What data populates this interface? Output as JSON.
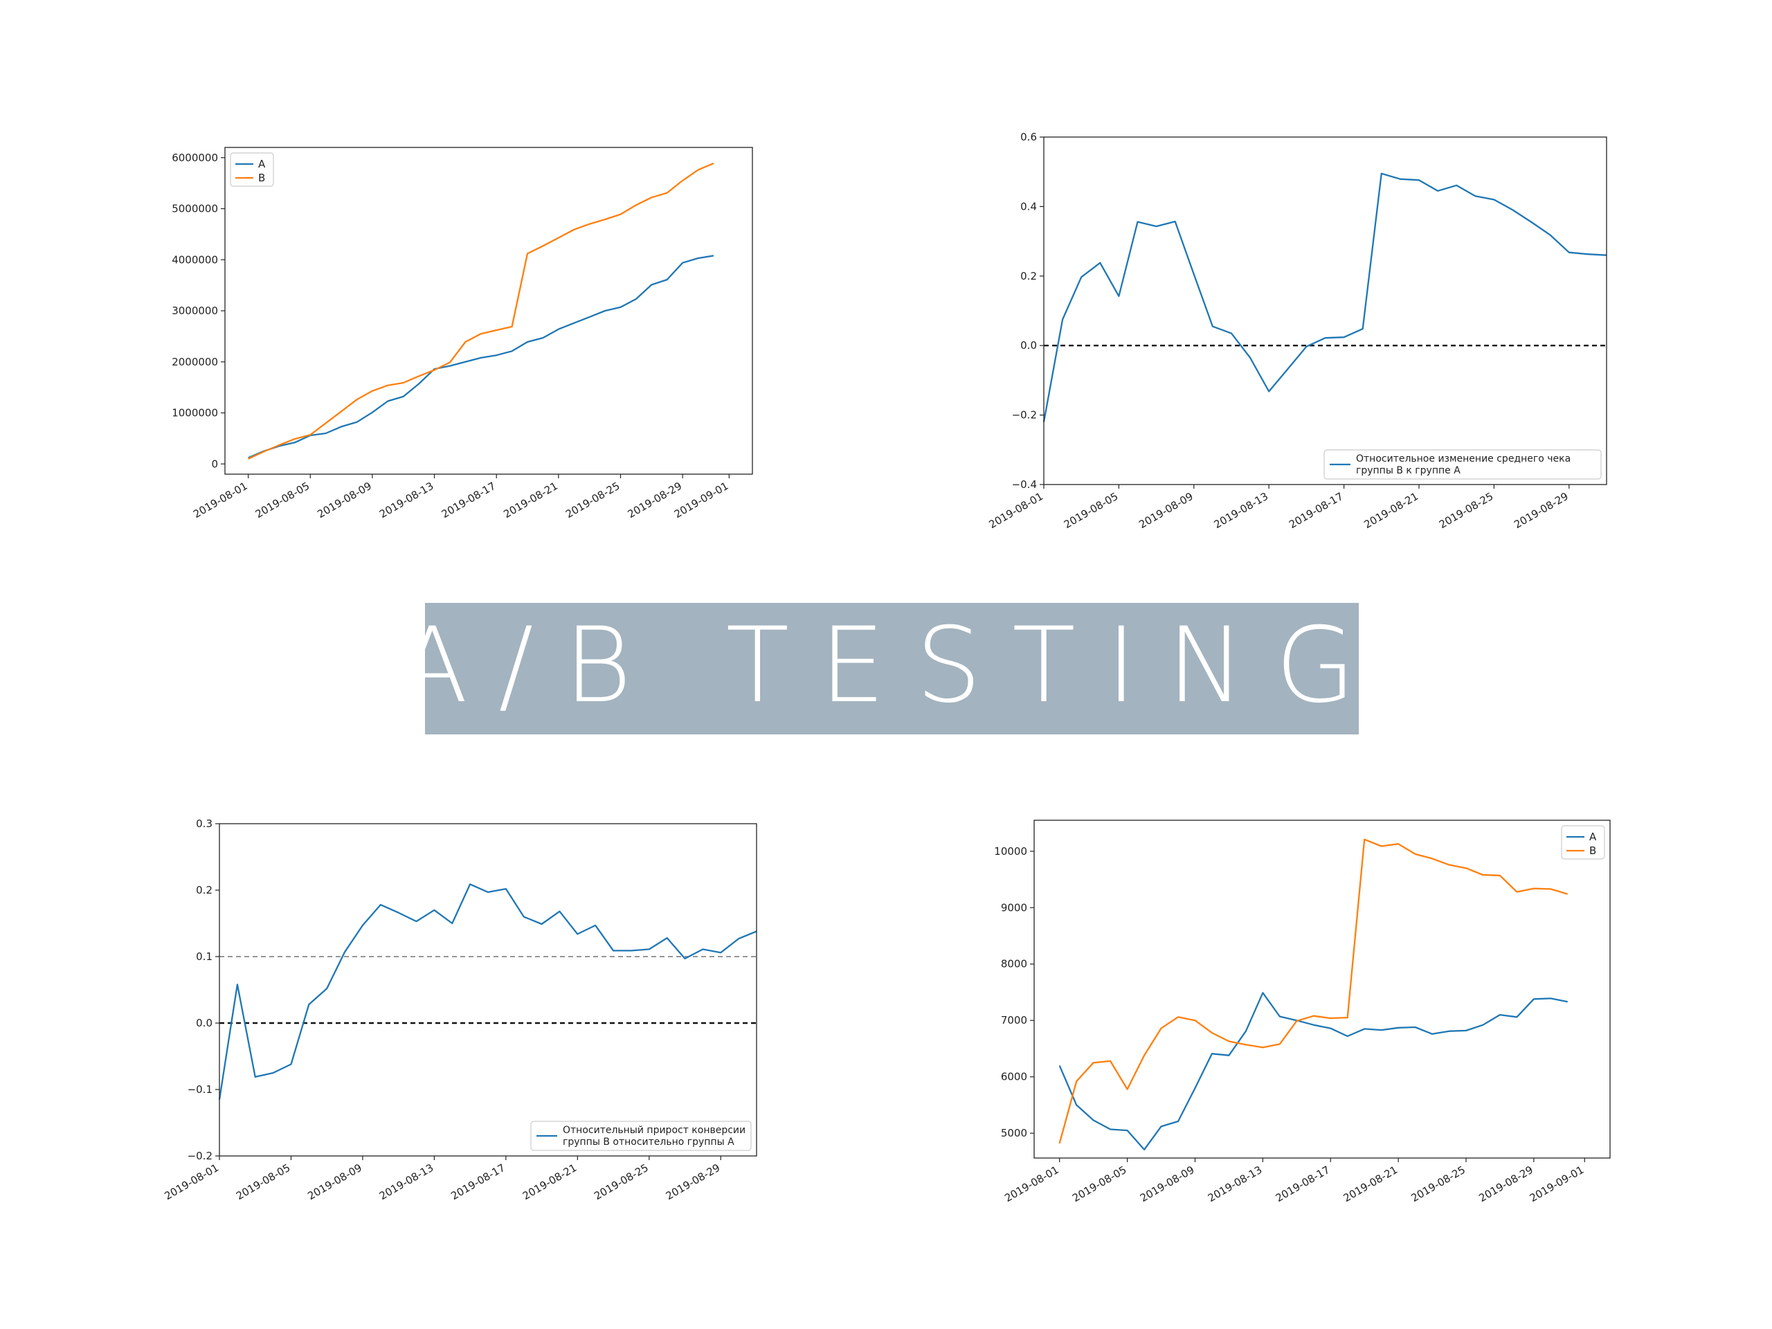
{
  "banner": {
    "title": "A/B TESTING",
    "background": "#a3b3bf",
    "text_color": "#ffffff"
  },
  "colors": {
    "A": "#1f77b4",
    "B": "#ff7f0e"
  },
  "chart_data": [
    {
      "id": "cum-revenue",
      "type": "line",
      "title": "",
      "xlabel": "",
      "ylabel": "",
      "x_ticks": [
        "2019-08-01",
        "2019-08-05",
        "2019-08-09",
        "2019-08-13",
        "2019-08-17",
        "2019-08-21",
        "2019-08-25",
        "2019-08-29",
        "2019-09-01"
      ],
      "y_ticks": [
        "0",
        "1000000",
        "2000000",
        "3000000",
        "4000000",
        "5000000",
        "6000000"
      ],
      "ylim": [
        -200000,
        6200000
      ],
      "legend": "top-left",
      "series": [
        {
          "name": "A",
          "values": [
            120000,
            250000,
            350000,
            420000,
            560000,
            600000,
            730000,
            820000,
            1010000,
            1230000,
            1320000,
            1570000,
            1860000,
            1920000,
            2000000,
            2080000,
            2130000,
            2210000,
            2390000,
            2470000,
            2640000,
            2760000,
            2880000,
            3000000,
            3070000,
            3230000,
            3510000,
            3610000,
            3940000,
            4030000,
            4080000
          ]
        },
        {
          "name": "B",
          "values": [
            100000,
            240000,
            370000,
            490000,
            570000,
            800000,
            1030000,
            1260000,
            1430000,
            1540000,
            1590000,
            1720000,
            1840000,
            1990000,
            2390000,
            2550000,
            2620000,
            2690000,
            4120000,
            4270000,
            4430000,
            4590000,
            4700000,
            4790000,
            4890000,
            5070000,
            5220000,
            5310000,
            5550000,
            5760000,
            5890000
          ]
        }
      ]
    },
    {
      "id": "avg-check-change",
      "type": "line",
      "title": "",
      "xlabel": "",
      "ylabel": "",
      "x_ticks": [
        "2019-08-01",
        "2019-08-05",
        "2019-08-09",
        "2019-08-13",
        "2019-08-17",
        "2019-08-21",
        "2019-08-25",
        "2019-08-29"
      ],
      "y_ticks": [
        "−0.4",
        "−0.2",
        "0.0",
        "0.2",
        "0.4",
        "0.6"
      ],
      "ylim": [
        -0.4,
        0.6
      ],
      "legend": "bottom-right",
      "reference_lines": [
        0.0
      ],
      "series": [
        {
          "name": "Относительное изменение среднего чека\n группы B к группе A",
          "values": [
            -0.22,
            0.075,
            0.197,
            0.238,
            0.142,
            0.356,
            0.343,
            0.357,
            0.205,
            0.055,
            0.035,
            -0.035,
            -0.132,
            -0.068,
            -0.003,
            0.022,
            0.024,
            0.048,
            0.495,
            0.479,
            0.476,
            0.445,
            0.461,
            0.43,
            0.42,
            0.39,
            0.355,
            0.318,
            0.268,
            0.263,
            0.26
          ]
        }
      ]
    },
    {
      "id": "conversion-change",
      "type": "line",
      "title": "",
      "xlabel": "",
      "ylabel": "",
      "x_ticks": [
        "2019-08-01",
        "2019-08-05",
        "2019-08-09",
        "2019-08-13",
        "2019-08-17",
        "2019-08-21",
        "2019-08-25",
        "2019-08-29"
      ],
      "y_ticks": [
        "−0.2",
        "−0.1",
        "0.0",
        "0.1",
        "0.2",
        "0.3"
      ],
      "ylim": [
        -0.2,
        0.3
      ],
      "legend": "bottom-right",
      "reference_lines": [
        0.0,
        0.1
      ],
      "series": [
        {
          "name": "Относительный прирост конверсии\n группы B относительно группы A",
          "values": [
            -0.115,
            0.058,
            -0.081,
            -0.075,
            -0.062,
            0.028,
            0.052,
            0.107,
            0.147,
            0.178,
            0.166,
            0.153,
            0.17,
            0.15,
            0.209,
            0.197,
            0.202,
            0.16,
            0.149,
            0.168,
            0.134,
            0.147,
            0.109,
            0.109,
            0.111,
            0.128,
            0.097,
            0.111,
            0.106,
            0.127,
            0.138
          ]
        }
      ]
    },
    {
      "id": "cum-avg-check",
      "type": "line",
      "title": "",
      "xlabel": "",
      "ylabel": "",
      "x_ticks": [
        "2019-08-01",
        "2019-08-05",
        "2019-08-09",
        "2019-08-13",
        "2019-08-17",
        "2019-08-21",
        "2019-08-25",
        "2019-08-29",
        "2019-09-01"
      ],
      "y_ticks": [
        "5000",
        "6000",
        "7000",
        "8000",
        "9000",
        "10000"
      ],
      "ylim": [
        4560,
        10550
      ],
      "legend": "top-right",
      "series": [
        {
          "name": "A",
          "values": [
            6200,
            5500,
            5230,
            5070,
            5050,
            4710,
            5120,
            5210,
            5800,
            6410,
            6380,
            6810,
            7490,
            7070,
            7000,
            6920,
            6860,
            6720,
            6850,
            6830,
            6870,
            6880,
            6760,
            6810,
            6820,
            6920,
            7100,
            7060,
            7380,
            7390,
            7330
          ]
        },
        {
          "name": "B",
          "values": [
            4820,
            5920,
            6250,
            6280,
            5780,
            6380,
            6860,
            7060,
            7000,
            6780,
            6630,
            6570,
            6520,
            6580,
            6990,
            7080,
            7040,
            7050,
            10210,
            10090,
            10130,
            9950,
            9870,
            9760,
            9700,
            9580,
            9570,
            9280,
            9340,
            9330,
            9240
          ]
        }
      ]
    }
  ]
}
